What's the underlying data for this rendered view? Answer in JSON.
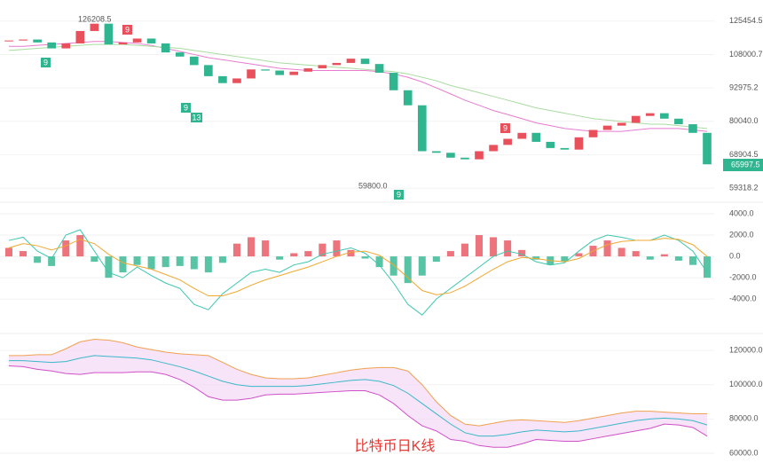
{
  "chart_data": [
    {
      "type": "candlestick",
      "log_scale": true,
      "ylim": [
        56350,
        137900
      ],
      "yticks": [
        125454.5,
        108000.7,
        92975.2,
        {
          "value": 80040,
          "label": "80040.0"
        },
        68904.5,
        59318.2
      ],
      "up_color": "#e8505b",
      "down_color": "#2fb58f",
      "closes": [
        115000,
        115500,
        114000,
        111000,
        113500,
        120000,
        124000,
        113000,
        114000,
        116000,
        113500,
        109000,
        107000,
        103000,
        98000,
        95000,
        97000,
        101000,
        100500,
        98500,
        100000,
        101500,
        103000,
        104000,
        106000,
        103500,
        99500,
        92000,
        86000,
        70000,
        69500,
        68000,
        67500,
        70000,
        72000,
        74000,
        76000,
        73000,
        71000,
        70500,
        74500,
        77000,
        78500,
        79500,
        82000,
        83000,
        81000,
        79000,
        76000,
        66000
      ],
      "series": [
        {
          "color": "#e87bd0",
          "values": [
            112000,
            112000,
            112500,
            113000,
            113500,
            114000,
            114500,
            114500,
            114000,
            113500,
            112500,
            111000,
            109500,
            108000,
            106500,
            105500,
            104500,
            103500,
            102500,
            101500,
            101000,
            100500,
            100500,
            100500,
            100500,
            100500,
            100000,
            99000,
            97500,
            95500,
            93000,
            90500,
            88000,
            86000,
            84000,
            82500,
            81000,
            79500,
            78500,
            77500,
            77000,
            76500,
            76500,
            76500,
            77000,
            77500,
            77500,
            77500,
            77000,
            76500
          ]
        },
        {
          "color": "#a8dca0",
          "values": [
            110000,
            110500,
            111000,
            111500,
            112000,
            112500,
            113000,
            113000,
            113000,
            112500,
            112000,
            111500,
            111000,
            110000,
            109000,
            108000,
            107000,
            106000,
            105000,
            104000,
            103500,
            103000,
            102500,
            102000,
            101500,
            101000,
            100500,
            100000,
            99000,
            97500,
            96000,
            94000,
            92500,
            91000,
            89500,
            88000,
            86500,
            85000,
            84000,
            83000,
            82000,
            81000,
            80500,
            80000,
            79500,
            79000,
            79000,
            78500,
            78000,
            77500
          ]
        }
      ],
      "last_price_label": "65997.5",
      "high_label": "126208.5",
      "low_label": "59800.0",
      "badges": [
        "9",
        "9",
        "9",
        "13",
        "9",
        "9"
      ],
      "watermark": "比特币日K线"
    },
    {
      "type": "macd",
      "ylim": [
        -6900,
        4750
      ],
      "yticks": [
        {
          "value": 4000,
          "label": "4000.0"
        },
        {
          "value": 2000,
          "label": "2000.0"
        },
        {
          "value": 0,
          "label": "0.0"
        },
        {
          "value": -2000,
          "label": "-2000.0"
        },
        {
          "value": -4000,
          "label": "-4000.0"
        }
      ],
      "up_color": "#e8505b",
      "down_color": "#2fb58f",
      "histogram": [
        800,
        500,
        -600,
        -900,
        1500,
        2000,
        -500,
        -2000,
        -1500,
        -800,
        -1200,
        -1000,
        -900,
        -1200,
        -1500,
        -600,
        1200,
        1800,
        1500,
        -300,
        300,
        500,
        1200,
        1500,
        600,
        -200,
        -1000,
        -1800,
        -2500,
        -1800,
        -500,
        500,
        1200,
        2000,
        1800,
        1500,
        600,
        -300,
        -800,
        -500,
        300,
        1000,
        1500,
        800,
        500,
        -300,
        200,
        -400,
        -800,
        -2000
      ],
      "series": [
        {
          "color": "#3cc7b0",
          "values": [
            1500,
            1800,
            500,
            -200,
            2000,
            2500,
            500,
            -1500,
            -2000,
            -1000,
            -1800,
            -2500,
            -3000,
            -4500,
            -5000,
            -3500,
            -2500,
            -1500,
            -1200,
            -1500,
            -800,
            -500,
            200,
            500,
            800,
            300,
            -800,
            -2500,
            -4500,
            -5500,
            -4000,
            -3000,
            -2000,
            -1000,
            0,
            500,
            200,
            -500,
            -800,
            -600,
            500,
            1500,
            2000,
            1800,
            1500,
            1500,
            2000,
            1500,
            500,
            -1500
          ]
        },
        {
          "color": "#f0a830",
          "values": [
            800,
            1200,
            1000,
            600,
            1000,
            1600,
            1200,
            200,
            -600,
            -900,
            -1200,
            -1700,
            -2200,
            -3000,
            -3700,
            -3700,
            -3300,
            -2700,
            -2200,
            -1800,
            -1400,
            -1000,
            -500,
            0,
            400,
            500,
            100,
            -800,
            -2000,
            -3200,
            -3600,
            -3400,
            -2800,
            -2000,
            -1200,
            -500,
            -100,
            -200,
            -400,
            -500,
            -200,
            500,
            1100,
            1400,
            1500,
            1500,
            1700,
            1600,
            1100,
            0
          ]
        }
      ]
    },
    {
      "type": "bollinger",
      "ylim": [
        54300,
        127800
      ],
      "yticks": [
        {
          "value": 120000,
          "label": "120000.0"
        },
        {
          "value": 100000,
          "label": "100000.0"
        },
        {
          "value": 80000,
          "label": "80000.0"
        },
        {
          "value": 60000,
          "label": "60000.0"
        }
      ],
      "band_color": "#f3d8f5",
      "series": [
        {
          "color": "#f0a050",
          "values": [
            117000,
            117000,
            117500,
            117500,
            121000,
            125000,
            126500,
            126000,
            124500,
            122000,
            120500,
            119000,
            118000,
            117500,
            117000,
            113000,
            109000,
            106000,
            104000,
            103500,
            103500,
            104000,
            105500,
            107000,
            108500,
            109500,
            110000,
            110000,
            108000,
            100000,
            90000,
            82000,
            77000,
            76000,
            77500,
            79000,
            79500,
            79000,
            78500,
            78000,
            79000,
            80500,
            82000,
            83500,
            84500,
            84500,
            84000,
            83500,
            83000,
            83000
          ]
        },
        {
          "color": "#3ab8c8",
          "values": [
            114000,
            114000,
            113500,
            113000,
            113500,
            115500,
            117000,
            116500,
            116000,
            115500,
            114500,
            112500,
            110500,
            108000,
            105000,
            102000,
            100000,
            99000,
            99000,
            99000,
            99000,
            99500,
            100500,
            101500,
            102500,
            103000,
            102000,
            99500,
            95000,
            89000,
            83000,
            77000,
            72000,
            70000,
            70000,
            71000,
            72500,
            73500,
            73000,
            72500,
            73000,
            74500,
            76000,
            77500,
            79000,
            80000,
            80500,
            80000,
            79000,
            76500
          ]
        },
        {
          "color": "#d050c8",
          "values": [
            111000,
            110500,
            109000,
            108000,
            106500,
            106000,
            107000,
            107000,
            107000,
            107500,
            107500,
            106000,
            103000,
            98500,
            93000,
            91000,
            91000,
            92000,
            94000,
            94500,
            94500,
            95000,
            95500,
            96000,
            96500,
            96500,
            94000,
            89000,
            82000,
            76000,
            73000,
            68000,
            67000,
            64500,
            63500,
            63500,
            65500,
            68000,
            67500,
            67000,
            67000,
            68500,
            70000,
            71500,
            73000,
            74500,
            77000,
            76500,
            75000,
            70000
          ]
        }
      ]
    }
  ]
}
